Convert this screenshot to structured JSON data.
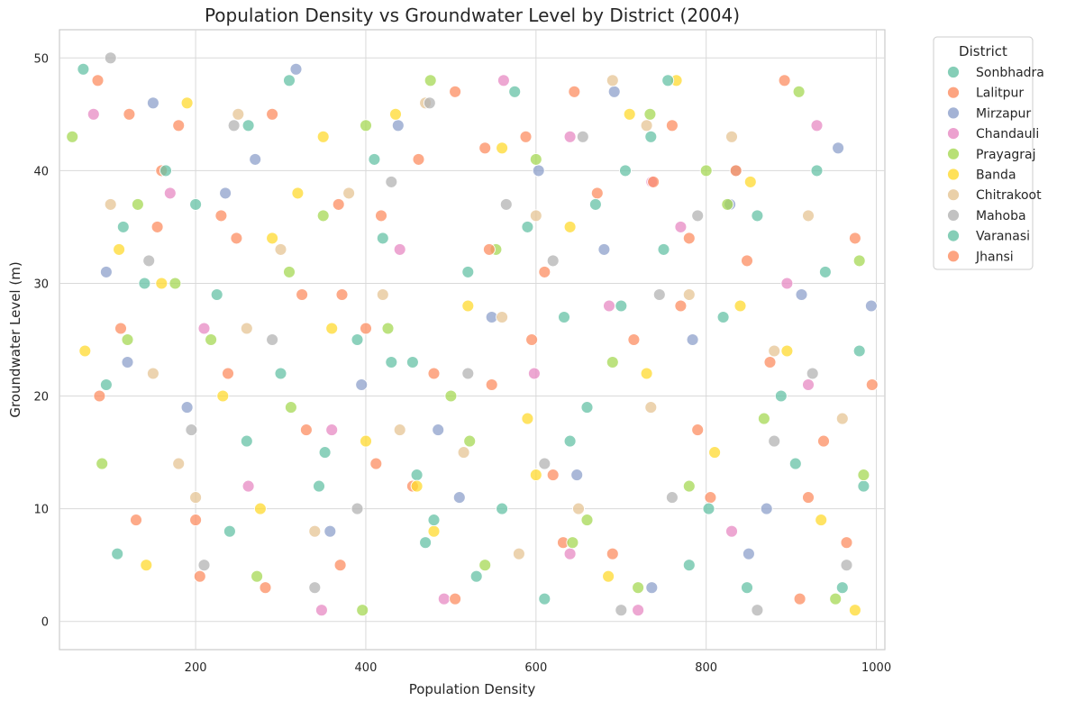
{
  "chart_data": {
    "type": "scatter",
    "title": "Population Density vs Groundwater Level by District (2004)",
    "xlabel": "Population Density",
    "ylabel": "Groundwater Level (m)",
    "xlim": [
      40,
      1010
    ],
    "ylim": [
      -2.5,
      52.5
    ],
    "x_ticks": [
      200,
      400,
      600,
      800,
      1000
    ],
    "y_ticks": [
      0,
      10,
      20,
      30,
      40,
      50
    ],
    "grid": true,
    "legend_title": "District",
    "legend_position": "outside-top-right",
    "points_per_series_approx": 100,
    "series": [
      {
        "name": "Sonbhadra",
        "color": "#66c2a5",
        "x": [
          68,
          95,
          140,
          200,
          262,
          300,
          345,
          410,
          430,
          470,
          520,
          560,
          610,
          660,
          700,
          735,
          780,
          820,
          860,
          905,
          930,
          960,
          985,
          750,
          575,
          460,
          390,
          240,
          115,
          640
        ],
        "y": [
          49,
          21,
          30,
          37,
          44,
          22,
          12,
          41,
          23,
          7,
          31,
          10,
          2,
          19,
          28,
          43,
          5,
          27,
          36,
          14,
          40,
          3,
          12,
          33,
          47,
          13,
          25,
          8,
          35,
          16
        ]
      },
      {
        "name": "Lalitpur",
        "color": "#fc8d62",
        "x": [
          85,
          112,
          160,
          205,
          248,
          290,
          330,
          372,
          418,
          455,
          505,
          548,
          588,
          632,
          672,
          715,
          760,
          805,
          848,
          892,
          938,
          975,
          130,
          230,
          370,
          480,
          620,
          770,
          910,
          540
        ],
        "y": [
          48,
          26,
          40,
          4,
          34,
          45,
          17,
          29,
          36,
          12,
          47,
          21,
          43,
          7,
          38,
          25,
          44,
          11,
          32,
          48,
          16,
          34,
          9,
          36,
          5,
          22,
          13,
          28,
          2,
          42
        ]
      },
      {
        "name": "Mirzapur",
        "color": "#8da0cb",
        "x": [
          95,
          150,
          190,
          235,
          318,
          358,
          395,
          438,
          485,
          548,
          603,
          648,
          692,
          736,
          784,
          828,
          871,
          912,
          955,
          994,
          270,
          510,
          680,
          850,
          120
        ],
        "y": [
          31,
          46,
          19,
          38,
          49,
          8,
          21,
          44,
          17,
          27,
          40,
          13,
          47,
          3,
          25,
          37,
          10,
          29,
          42,
          28,
          41,
          11,
          33,
          6,
          23
        ]
      },
      {
        "name": "Chandauli",
        "color": "#e78ac3",
        "x": [
          80,
          170,
          262,
          348,
          440,
          492,
          562,
          598,
          640,
          686,
          720,
          736,
          830,
          895,
          930,
          360,
          210,
          640,
          770,
          920
        ],
        "y": [
          45,
          38,
          12,
          1,
          33,
          2,
          48,
          22,
          43,
          28,
          1,
          39,
          8,
          30,
          44,
          17,
          26,
          6,
          35,
          21
        ]
      },
      {
        "name": "Prayagraj",
        "color": "#a6d854",
        "x": [
          55,
          90,
          132,
          176,
          218,
          272,
          312,
          350,
          396,
          426,
          476,
          522,
          553,
          600,
          643,
          690,
          734,
          780,
          825,
          868,
          909,
          952,
          985,
          120,
          310,
          500,
          660,
          800,
          400,
          720,
          980,
          540
        ],
        "y": [
          43,
          14,
          37,
          30,
          25,
          4,
          19,
          36,
          1,
          26,
          48,
          16,
          33,
          41,
          7,
          23,
          45,
          12,
          37,
          18,
          47,
          2,
          13,
          25,
          31,
          20,
          9,
          40,
          44,
          3,
          32,
          5
        ]
      },
      {
        "name": "Banda",
        "color": "#ffd92f",
        "x": [
          70,
          110,
          142,
          190,
          232,
          276,
          320,
          360,
          400,
          435,
          480,
          520,
          560,
          600,
          640,
          685,
          730,
          765,
          810,
          852,
          895,
          935,
          975,
          160,
          350,
          590,
          840,
          710,
          290,
          460
        ],
        "y": [
          24,
          33,
          5,
          46,
          20,
          10,
          38,
          26,
          16,
          45,
          8,
          28,
          42,
          13,
          35,
          4,
          22,
          48,
          15,
          39,
          24,
          9,
          1,
          30,
          43,
          18,
          28,
          45,
          34,
          12
        ]
      },
      {
        "name": "Chitrakoot",
        "color": "#e5c494",
        "x": [
          100,
          150,
          200,
          250,
          300,
          340,
          380,
          420,
          470,
          515,
          560,
          600,
          650,
          690,
          735,
          780,
          830,
          880,
          920,
          960,
          180,
          440,
          580,
          730,
          260
        ],
        "y": [
          37,
          22,
          11,
          45,
          33,
          8,
          38,
          29,
          46,
          15,
          27,
          36,
          10,
          48,
          19,
          29,
          43,
          24,
          36,
          18,
          14,
          17,
          6,
          44,
          26
        ]
      },
      {
        "name": "Mahoba",
        "color": "#b3b3b3",
        "x": [
          100,
          145,
          195,
          245,
          290,
          340,
          390,
          430,
          475,
          520,
          565,
          610,
          655,
          700,
          745,
          790,
          835,
          880,
          925,
          965,
          210,
          620,
          760,
          860
        ],
        "y": [
          50,
          32,
          17,
          44,
          25,
          3,
          10,
          39,
          46,
          22,
          37,
          14,
          43,
          1,
          29,
          36,
          40,
          16,
          22,
          5,
          5,
          32,
          11,
          1
        ]
      },
      {
        "name": "Varanasi",
        "color": "#66c2a5",
        "x": [
          108,
          165,
          225,
          310,
          352,
          420,
          455,
          530,
          590,
          633,
          705,
          755,
          803,
          848,
          888,
          940,
          980,
          260,
          480,
          670
        ],
        "y": [
          6,
          40,
          29,
          48,
          15,
          34,
          23,
          4,
          35,
          27,
          40,
          48,
          10,
          3,
          20,
          31,
          24,
          16,
          9,
          37
        ]
      },
      {
        "name": "Jhansi",
        "color": "#fc8d62",
        "x": [
          87,
          122,
          155,
          200,
          238,
          282,
          325,
          368,
          412,
          462,
          505,
          545,
          595,
          645,
          690,
          738,
          790,
          835,
          875,
          920,
          965,
          995,
          180,
          400,
          610,
          780
        ],
        "y": [
          20,
          45,
          35,
          9,
          22,
          3,
          29,
          37,
          14,
          41,
          2,
          33,
          25,
          47,
          6,
          39,
          17,
          40,
          23,
          11,
          7,
          21,
          44,
          26,
          31,
          34
        ]
      }
    ]
  }
}
